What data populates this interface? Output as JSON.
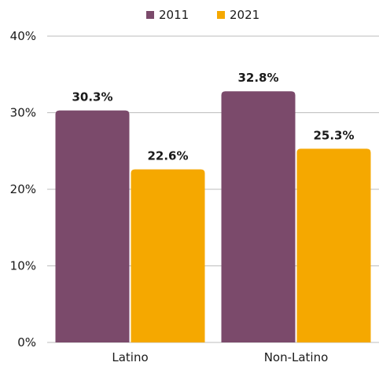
{
  "chart_data": {
    "type": "bar",
    "categories": [
      "Latino",
      "Non-Latino"
    ],
    "series": [
      {
        "name": "2011",
        "values": [
          30.3,
          32.8
        ],
        "labels": [
          "30.3%",
          "32.8%"
        ],
        "color": "#7b4a6b"
      },
      {
        "name": "2021",
        "values": [
          22.6,
          25.3
        ],
        "labels": [
          "22.6%",
          "25.3%"
        ],
        "color": "#f5a800"
      }
    ],
    "ylim": [
      0,
      40
    ],
    "yticks": [
      {
        "value": 0,
        "label": "0%"
      },
      {
        "value": 10,
        "label": "10%"
      },
      {
        "value": 20,
        "label": "20%"
      },
      {
        "value": 30,
        "label": "30%"
      },
      {
        "value": 40,
        "label": "40%"
      }
    ],
    "grid": true,
    "legend_position": "top-center",
    "title": "",
    "xlabel": "",
    "ylabel": ""
  }
}
